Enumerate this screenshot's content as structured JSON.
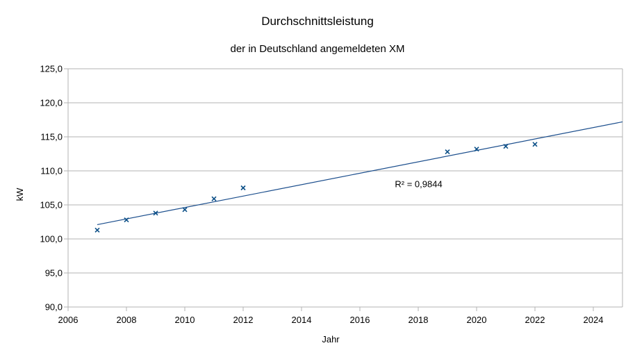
{
  "chart_data": {
    "type": "scatter",
    "title": "Durchschnittsleistung",
    "subtitle": "der in Deutschland angemeldeten XM",
    "xlabel": "Jahr",
    "ylabel": "kW",
    "xlim": [
      2006,
      2025
    ],
    "ylim": [
      90,
      125
    ],
    "x_ticks": [
      "2006",
      "2008",
      "2010",
      "2012",
      "2014",
      "2016",
      "2018",
      "2020",
      "2022",
      "2024"
    ],
    "y_ticks": [
      "90,0",
      "95,0",
      "100,0",
      "105,0",
      "110,0",
      "115,0",
      "120,0",
      "125,0"
    ],
    "grid": true,
    "points": [
      {
        "x": 2007,
        "y": 101.3
      },
      {
        "x": 2008,
        "y": 102.8
      },
      {
        "x": 2009,
        "y": 103.8
      },
      {
        "x": 2010,
        "y": 104.3
      },
      {
        "x": 2011,
        "y": 105.9
      },
      {
        "x": 2012,
        "y": 107.5
      },
      {
        "x": 2019,
        "y": 112.8
      },
      {
        "x": 2020,
        "y": 113.2
      },
      {
        "x": 2021,
        "y": 113.6
      },
      {
        "x": 2022,
        "y": 113.9
      }
    ],
    "trendline": {
      "type": "linear",
      "x_start": 2007,
      "y_start": 102.1,
      "x_end": 2025,
      "y_end": 117.2,
      "label": "R² = 0,9844"
    },
    "marker": "x",
    "color": "#0b4f87",
    "line_color": "#1a4d8c"
  }
}
